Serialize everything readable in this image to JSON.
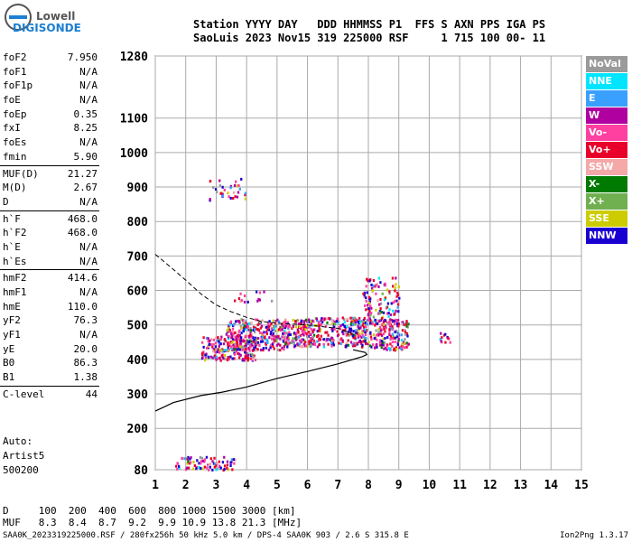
{
  "logo": {
    "line1": "Lowell",
    "line2": "DIGISONDE"
  },
  "header": {
    "row1": "Station YYYY DAY   DDD HHMMSS P1  FFS S AXN PPS IGA PS",
    "row2": "SaoLuis 2023 Nov15 319 225000 RSF     1 715 100 00- 11"
  },
  "params_groups": [
    [
      {
        "name": "foF2",
        "value": "7.950"
      },
      {
        "name": "foF1",
        "value": "N/A"
      },
      {
        "name": "foF1p",
        "value": "N/A"
      },
      {
        "name": "foE",
        "value": "N/A"
      },
      {
        "name": "foEp",
        "value": "0.35"
      },
      {
        "name": "fxI",
        "value": "8.25"
      },
      {
        "name": "foEs",
        "value": "N/A"
      },
      {
        "name": "fmin",
        "value": "5.90"
      }
    ],
    [
      {
        "name": "MUF(D)",
        "value": "21.27"
      },
      {
        "name": "M(D)",
        "value": "2.67"
      },
      {
        "name": "D",
        "value": "N/A"
      }
    ],
    [
      {
        "name": "h`F",
        "value": "468.0"
      },
      {
        "name": "h`F2",
        "value": "468.0"
      },
      {
        "name": "h`E",
        "value": "N/A"
      },
      {
        "name": "h`Es",
        "value": "N/A"
      }
    ],
    [
      {
        "name": "hmF2",
        "value": "414.6"
      },
      {
        "name": "hmF1",
        "value": "N/A"
      },
      {
        "name": "hmE",
        "value": "110.0"
      },
      {
        "name": "yF2",
        "value": "76.3"
      },
      {
        "name": "yF1",
        "value": "N/A"
      },
      {
        "name": "yE",
        "value": "20.0"
      },
      {
        "name": "B0",
        "value": "86.3"
      },
      {
        "name": "B1",
        "value": "1.38"
      }
    ],
    [
      {
        "name": "C-level",
        "value": "44"
      }
    ]
  ],
  "auto": {
    "line1": "Auto:",
    "line2": "Artist5",
    "line3": "500200"
  },
  "legend": [
    {
      "label": "NoVal",
      "color": "#9a9a9a"
    },
    {
      "label": "NNE",
      "color": "#00e5ff"
    },
    {
      "label": "E",
      "color": "#3aa0ff"
    },
    {
      "label": "W",
      "color": "#b000a0"
    },
    {
      "label": "Vo-",
      "color": "#ff40a0"
    },
    {
      "label": "Vo+",
      "color": "#e8002a"
    },
    {
      "label": "SSW",
      "color": "#f4a8a8"
    },
    {
      "label": "X-",
      "color": "#007a00"
    },
    {
      "label": "X+",
      "color": "#70b050"
    },
    {
      "label": "SSE",
      "color": "#cccc00"
    },
    {
      "label": "NNW",
      "color": "#1a00d0"
    }
  ],
  "chart_data": {
    "type": "scatter",
    "x_unit": "MHz",
    "y_unit": "km",
    "xlim": [
      1,
      15
    ],
    "ylim": [
      80,
      1280
    ],
    "x_ticks": [
      1,
      2,
      3,
      4,
      5,
      6,
      7,
      8,
      9,
      10,
      11,
      12,
      13,
      14,
      15
    ],
    "y_ticks": [
      80,
      200,
      300,
      400,
      500,
      600,
      700,
      800,
      900,
      1000,
      1100,
      1280
    ],
    "grid": true,
    "profile_solid": [
      [
        1,
        250
      ],
      [
        1.6,
        275
      ],
      [
        2.5,
        295
      ],
      [
        3.2,
        305
      ],
      [
        4,
        320
      ],
      [
        5,
        345
      ],
      [
        6,
        365
      ],
      [
        7,
        387
      ],
      [
        7.8,
        408
      ],
      [
        7.95,
        414
      ],
      [
        7.9,
        420
      ],
      [
        7.5,
        428
      ]
    ],
    "profile_dashed": [
      [
        1,
        705
      ],
      [
        1.5,
        668
      ],
      [
        2,
        630
      ],
      [
        2.5,
        590
      ],
      [
        3,
        558
      ],
      [
        3.5,
        538
      ],
      [
        4,
        522
      ],
      [
        4.5,
        510
      ],
      [
        5,
        505
      ],
      [
        6,
        500
      ],
      [
        7,
        490
      ],
      [
        7.4,
        478
      ],
      [
        7.6,
        468
      ]
    ],
    "echo_clusters": [
      {
        "x": [
          2.5,
          4.3
        ],
        "y": [
          400,
          470
        ],
        "n": 220
      },
      {
        "x": [
          3.3,
          5.3
        ],
        "y": [
          430,
          520
        ],
        "n": 260
      },
      {
        "x": [
          5.2,
          6.2
        ],
        "y": [
          440,
          520
        ],
        "n": 160
      },
      {
        "x": [
          6.2,
          7.9
        ],
        "y": [
          440,
          525
        ],
        "n": 200
      },
      {
        "x": [
          7.6,
          9.3
        ],
        "y": [
          430,
          520
        ],
        "n": 200
      },
      {
        "x": [
          7.8,
          9.0
        ],
        "y": [
          500,
          640
        ],
        "n": 120
      },
      {
        "x": [
          1.6,
          3.6
        ],
        "y": [
          82,
          120
        ],
        "n": 80
      },
      {
        "x": [
          2.7,
          4.0
        ],
        "y": [
          860,
          930
        ],
        "n": 35
      },
      {
        "x": [
          10.3,
          10.7
        ],
        "y": [
          450,
          480
        ],
        "n": 12
      },
      {
        "x": [
          3.5,
          4.8
        ],
        "y": [
          570,
          600
        ],
        "n": 15
      }
    ]
  },
  "d_table": {
    "d_row": "D     100  200  400  600  800 1000 1500 3000 [km]",
    "muf_row": "MUF   8.3  8.4  8.7  9.2  9.9 10.9 13.8 21.3 [MHz]"
  },
  "footer": {
    "left": "SAA0K_2023319225000.RSF / 280fx256h 50 kHz 5.0 km / DPS-4 SAA0K 903 / 2.6 S 315.8 E",
    "right": "Ion2Png 1.3.17"
  }
}
